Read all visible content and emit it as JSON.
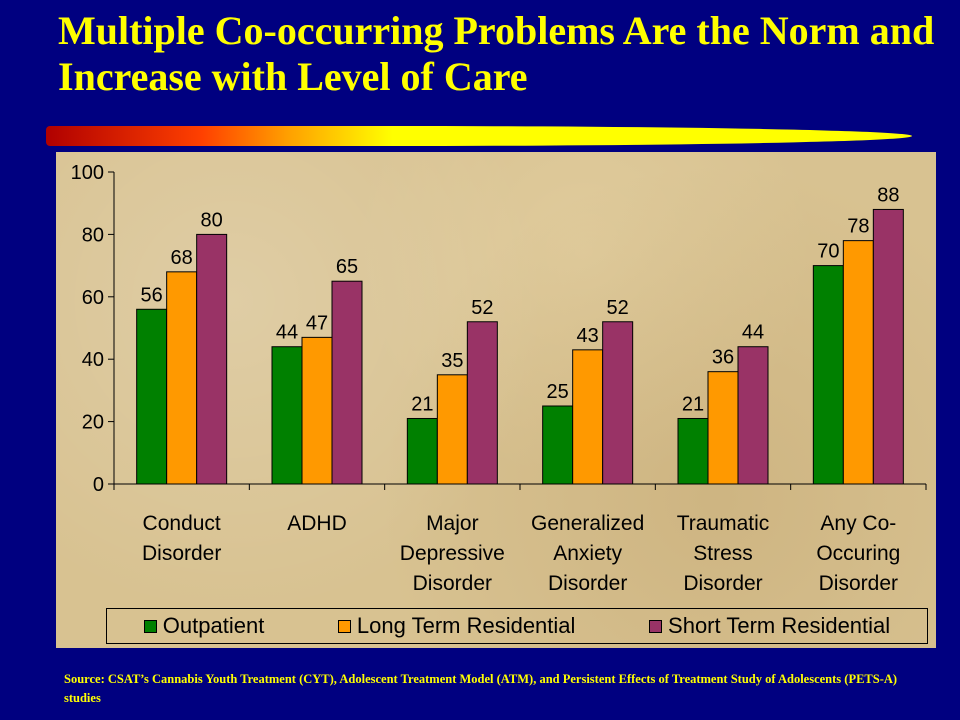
{
  "title": "Multiple Co-occurring Problems Are the Norm and Increase with Level of Care",
  "source": "Source: CSAT’s Cannabis Youth Treatment (CYT), Adolescent Treatment Model (ATM), and Persistent Effects of Treatment Study of Adolescents (PETS-A) studies",
  "colors": {
    "outpatient": "#008000",
    "long_term": "#ff9900",
    "short_term": "#993366",
    "background": "#000080",
    "title": "#ffff00"
  },
  "chart_data": {
    "type": "bar",
    "categories": [
      [
        "Conduct",
        "Disorder"
      ],
      [
        "ADHD"
      ],
      [
        "Major",
        "Depressive",
        "Disorder"
      ],
      [
        "Generalized",
        "Anxiety",
        "Disorder"
      ],
      [
        "Traumatic",
        "Stress",
        "Disorder"
      ],
      [
        "Any Co-",
        "Occuring",
        "Disorder"
      ]
    ],
    "series": [
      {
        "name": "Outpatient",
        "color": "#008000",
        "values": [
          56,
          44,
          21,
          25,
          21,
          70
        ]
      },
      {
        "name": "Long Term Residential",
        "color": "#ff9900",
        "values": [
          68,
          47,
          35,
          43,
          36,
          78
        ]
      },
      {
        "name": "Short Term Residential",
        "color": "#993366",
        "values": [
          80,
          65,
          52,
          52,
          44,
          88
        ]
      }
    ],
    "yticks": [
      0,
      20,
      40,
      60,
      80,
      100
    ],
    "ylim": [
      0,
      100
    ],
    "legend_position": "bottom",
    "grid": false
  }
}
